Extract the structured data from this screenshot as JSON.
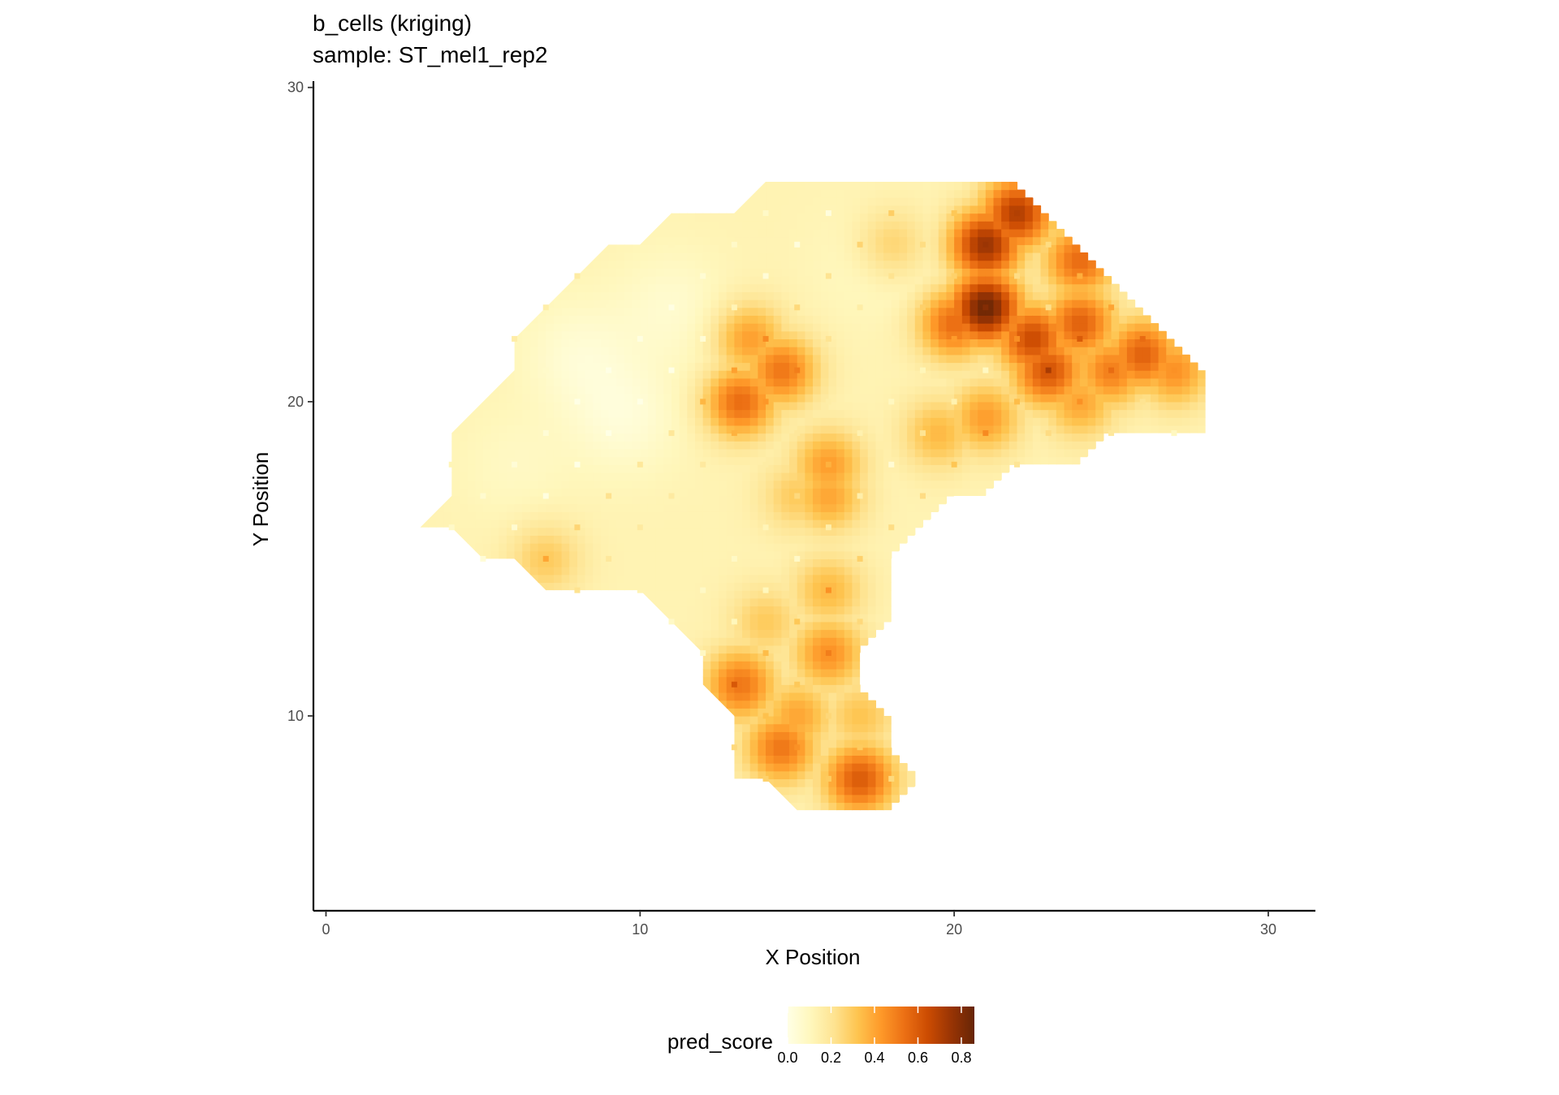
{
  "chart_data": {
    "type": "heatmap",
    "title": "b_cells (kriging)",
    "subtitle": "sample: ST_mel1_rep2",
    "xlabel": "X Position",
    "ylabel": "Y Position",
    "xlim": [
      -0.4,
      31.5
    ],
    "ylim": [
      3.8,
      30.2
    ],
    "x_ticks": [
      {
        "value": 0,
        "label": "0"
      },
      {
        "value": 10,
        "label": "10"
      },
      {
        "value": 20,
        "label": "20"
      },
      {
        "value": 30,
        "label": "30"
      }
    ],
    "y_ticks": [
      {
        "value": 10,
        "label": "10"
      },
      {
        "value": 20,
        "label": "20"
      },
      {
        "value": 30,
        "label": "30"
      }
    ],
    "grid": false,
    "legend": {
      "title": "pred_score",
      "position": "bottom",
      "range": [
        0,
        0.86
      ],
      "ticks": [
        {
          "value": 0.0,
          "label": "0.0"
        },
        {
          "value": 0.2,
          "label": "0.2"
        },
        {
          "value": 0.4,
          "label": "0.4"
        },
        {
          "value": 0.6,
          "label": "0.6"
        },
        {
          "value": 0.8,
          "label": "0.8"
        }
      ],
      "colors": [
        "#FFFFE5",
        "#FFF7BC",
        "#FEE391",
        "#FEC44F",
        "#FE9929",
        "#EC7014",
        "#CC4C02",
        "#993404",
        "#662506"
      ]
    },
    "region_outline": [
      [
        3,
        16
      ],
      [
        4,
        17
      ],
      [
        4,
        19
      ],
      [
        6,
        21
      ],
      [
        6,
        22
      ],
      [
        9,
        25
      ],
      [
        10,
        25
      ],
      [
        11,
        26
      ],
      [
        13,
        26
      ],
      [
        14,
        27
      ],
      [
        22,
        27
      ],
      [
        26,
        23
      ],
      [
        28,
        21
      ],
      [
        28,
        19
      ],
      [
        25,
        19
      ],
      [
        24,
        18
      ],
      [
        22,
        18
      ],
      [
        21,
        17
      ],
      [
        20,
        17
      ],
      [
        18,
        15
      ],
      [
        18,
        13
      ],
      [
        17,
        12
      ],
      [
        17,
        11
      ],
      [
        18,
        10
      ],
      [
        18,
        9
      ],
      [
        19,
        8
      ],
      [
        18,
        7
      ],
      [
        15,
        7
      ],
      [
        14,
        8
      ],
      [
        13,
        8
      ],
      [
        13,
        10
      ],
      [
        12,
        11
      ],
      [
        12,
        12
      ],
      [
        10,
        14
      ],
      [
        7,
        14
      ],
      [
        6,
        15
      ],
      [
        5,
        15
      ],
      [
        4,
        16
      ]
    ],
    "hotspots": [
      {
        "x": 21,
        "y": 23,
        "value": 0.85
      },
      {
        "x": 21,
        "y": 25,
        "value": 0.75
      },
      {
        "x": 22,
        "y": 26,
        "value": 0.7
      },
      {
        "x": 22.5,
        "y": 22,
        "value": 0.65
      },
      {
        "x": 23,
        "y": 21,
        "value": 0.62
      },
      {
        "x": 20,
        "y": 22.5,
        "value": 0.55
      },
      {
        "x": 24,
        "y": 24.5,
        "value": 0.55
      },
      {
        "x": 24,
        "y": 22.5,
        "value": 0.58
      },
      {
        "x": 26,
        "y": 21.5,
        "value": 0.58
      },
      {
        "x": 25,
        "y": 21,
        "value": 0.5
      },
      {
        "x": 27,
        "y": 21,
        "value": 0.45
      },
      {
        "x": 24,
        "y": 20,
        "value": 0.4
      },
      {
        "x": 21,
        "y": 19.5,
        "value": 0.42
      },
      {
        "x": 19.5,
        "y": 19,
        "value": 0.35
      },
      {
        "x": 14.5,
        "y": 21,
        "value": 0.52
      },
      {
        "x": 13.2,
        "y": 20,
        "value": 0.55
      },
      {
        "x": 13.5,
        "y": 22,
        "value": 0.42
      },
      {
        "x": 16,
        "y": 18,
        "value": 0.42
      },
      {
        "x": 16,
        "y": 17,
        "value": 0.4
      },
      {
        "x": 15,
        "y": 17,
        "value": 0.3
      },
      {
        "x": 14.5,
        "y": 9,
        "value": 0.52
      },
      {
        "x": 13.2,
        "y": 11,
        "value": 0.52
      },
      {
        "x": 16,
        "y": 12,
        "value": 0.45
      },
      {
        "x": 17,
        "y": 8,
        "value": 0.6
      },
      {
        "x": 16,
        "y": 14,
        "value": 0.35
      },
      {
        "x": 14,
        "y": 13,
        "value": 0.3
      },
      {
        "x": 17,
        "y": 10,
        "value": 0.32
      },
      {
        "x": 15,
        "y": 10,
        "value": 0.4
      },
      {
        "x": 18,
        "y": 25,
        "value": 0.3
      },
      {
        "x": 7,
        "y": 15,
        "value": 0.3
      }
    ],
    "baseline_value": 0.13,
    "cold_spots": [
      {
        "x": 9.5,
        "y": 19.5,
        "value": 0.04
      },
      {
        "x": 8,
        "y": 21.5,
        "value": 0.05
      },
      {
        "x": 11,
        "y": 23,
        "value": 0.06
      },
      {
        "x": 17.5,
        "y": 24.5,
        "value": 0.08
      },
      {
        "x": 6,
        "y": 18,
        "value": 0.09
      }
    ]
  }
}
